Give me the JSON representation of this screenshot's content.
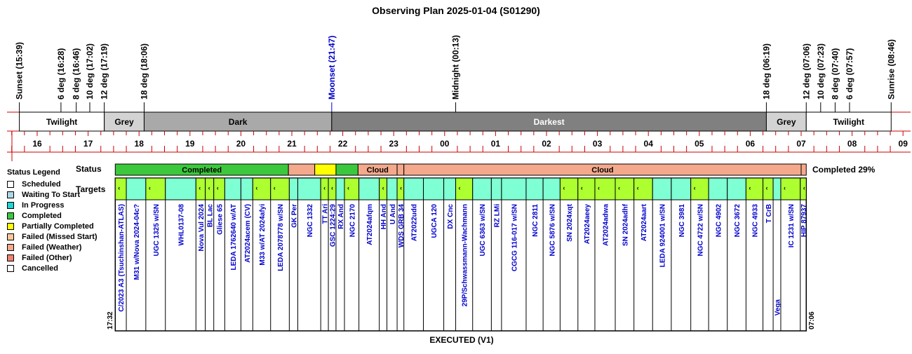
{
  "title": "Observing Plan 2025-01-04 (S01290)",
  "footer": "EXECUTED (V1)",
  "completion": "Completed 29%",
  "status_label": "Status",
  "targets_label": "Targets",
  "start_time_label": "17:32",
  "end_time_label": "07:06",
  "legend": {
    "title": "Status Legend",
    "items": [
      {
        "label": "Scheduled",
        "color": "#ffffff"
      },
      {
        "label": "Waiting To Start",
        "color": "#add8e6"
      },
      {
        "label": "In Progress",
        "color": "#22d3d3"
      },
      {
        "label": "Completed",
        "color": "#3cc83c"
      },
      {
        "label": "Partially Completed",
        "color": "#ffff00"
      },
      {
        "label": "Failed (Missed Start)",
        "color": "#f8c89a"
      },
      {
        "label": "Failed (Weather)",
        "color": "#f4a98c"
      },
      {
        "label": "Failed (Other)",
        "color": "#f08070"
      },
      {
        "label": "Cancelled",
        "color": "#ffffff"
      }
    ]
  },
  "colors": {
    "twilight": "#ffffff",
    "grey": "#d3d3d3",
    "dark": "#a9a9a9",
    "darkest": "#808080",
    "red_line": "#cc0000",
    "moon": "#0000cc",
    "target_text": "#0000cc",
    "target_a": "#7fffd4",
    "target_b": "#adff2f",
    "target_c": "#7cfc00"
  },
  "chart_data": {
    "type": "timeline",
    "events": [
      {
        "label": "Sunset (15:39)",
        "time": 15.65
      },
      {
        "label": "6 deg (16:28)",
        "time": 16.467
      },
      {
        "label": "8 deg (16:46)",
        "time": 16.767
      },
      {
        "label": "10 deg (17:02)",
        "time": 17.033
      },
      {
        "label": "12 deg (17:19)",
        "time": 17.317
      },
      {
        "label": "18 deg (18:06)",
        "time": 18.1
      },
      {
        "label": "Moonset (21:47)",
        "time": 21.783,
        "moon": true
      },
      {
        "label": "Midnight (00:13)",
        "time": 24.217
      },
      {
        "label": "18 deg (06:19)",
        "time": 30.317
      },
      {
        "label": "12 deg (07:06)",
        "time": 31.1
      },
      {
        "label": "10 deg (07:23)",
        "time": 31.383
      },
      {
        "label": "8 deg (07:40)",
        "time": 31.667
      },
      {
        "label": "6 deg (07:57)",
        "time": 31.95
      },
      {
        "label": "Sunrise (08:46)",
        "time": 32.767
      }
    ],
    "bands": [
      {
        "label": "Twilight",
        "start": 15.65,
        "end": 17.317,
        "kind": "twilight"
      },
      {
        "label": "Grey",
        "start": 17.317,
        "end": 18.1,
        "kind": "grey"
      },
      {
        "label": "Dark",
        "start": 18.1,
        "end": 21.783,
        "kind": "dark"
      },
      {
        "label": "Darkest",
        "start": 21.783,
        "end": 30.317,
        "kind": "darkest"
      },
      {
        "label": "Grey",
        "start": 30.317,
        "end": 31.1,
        "kind": "grey"
      },
      {
        "label": "Twilight",
        "start": 31.1,
        "end": 32.767,
        "kind": "twilight"
      }
    ],
    "hour_ticks": [
      "16",
      "17",
      "18",
      "19",
      "20",
      "21",
      "22",
      "23",
      "00",
      "01",
      "02",
      "03",
      "04",
      "05",
      "06",
      "07",
      "08",
      "09"
    ],
    "status_blocks": [
      {
        "label": "Completed",
        "start": 17.533,
        "end": 20.933,
        "color": "#3cc83c"
      },
      {
        "label": "",
        "start": 20.933,
        "end": 21.45,
        "color": "#f4a98c"
      },
      {
        "label": "",
        "start": 21.45,
        "end": 21.867,
        "color": "#ffff00"
      },
      {
        "label": "",
        "start": 21.867,
        "end": 22.3,
        "color": "#3cc83c"
      },
      {
        "label": "Cloud",
        "start": 22.3,
        "end": 23.067,
        "color": "#f4a98c"
      },
      {
        "label": "",
        "start": 23.067,
        "end": 23.2,
        "color": "#f4a98c"
      },
      {
        "label": "Cloud",
        "start": 23.2,
        "end": 31.0,
        "color": "#f4a98c"
      },
      {
        "label": "",
        "start": 31.0,
        "end": 31.1,
        "color": "#f4a98c"
      }
    ],
    "targets": [
      {
        "name": "C/2023 A3 (Tsuchinshan-ATLAS)",
        "start": 17.533,
        "end": 17.75,
        "marker": true,
        "shade": "b"
      },
      {
        "name": "M31 w/Nova 2024-04c?",
        "start": 17.75,
        "end": 18.133,
        "marker": false,
        "shade": "a"
      },
      {
        "name": "UGC 1325 w/SN",
        "start": 18.133,
        "end": 18.517,
        "marker": true,
        "shade": "b"
      },
      {
        "name": "WHL0137-08",
        "start": 18.517,
        "end": 19.117,
        "marker": false,
        "shade": "a"
      },
      {
        "name": "Nova Vul 2024",
        "start": 19.117,
        "end": 19.3,
        "marker": true,
        "shade": "b"
      },
      {
        "name": "BL Lac",
        "start": 19.3,
        "end": 19.467,
        "marker": true,
        "shade": "b"
      },
      {
        "name": "Gliese 65",
        "start": 19.467,
        "end": 19.683,
        "marker": true,
        "shade": "b"
      },
      {
        "name": "LEDA 1762640 w/AT",
        "start": 19.683,
        "end": 20.0,
        "marker": false,
        "shade": "a"
      },
      {
        "name": "AT2024acem (CV)",
        "start": 20.0,
        "end": 20.233,
        "marker": false,
        "shade": "a"
      },
      {
        "name": "M33 w/AT 2024afyi",
        "start": 20.233,
        "end": 20.583,
        "marker": true,
        "shade": "b"
      },
      {
        "name": "LEDA 2078778 w/SN",
        "start": 20.583,
        "end": 20.95,
        "marker": true,
        "shade": "b"
      },
      {
        "name": "GK Per",
        "start": 20.95,
        "end": 21.117,
        "marker": false,
        "shade": "a"
      },
      {
        "name": "NGC 1332",
        "start": 21.117,
        "end": 21.567,
        "marker": false,
        "shade": "a"
      },
      {
        "name": "TT Ari",
        "start": 21.567,
        "end": 21.717,
        "marker": true,
        "shade": "b"
      },
      {
        "name": "GSC 1224:29",
        "start": 21.717,
        "end": 21.867,
        "marker": true,
        "shade": "b"
      },
      {
        "name": "RX And",
        "start": 21.867,
        "end": 22.033,
        "marker": false,
        "shade": "a"
      },
      {
        "name": "NGC 2170",
        "start": 22.033,
        "end": 22.317,
        "marker": true,
        "shade": "b"
      },
      {
        "name": "AT2024afqm",
        "start": 22.317,
        "end": 22.717,
        "marker": false,
        "shade": "a"
      },
      {
        "name": "HH And",
        "start": 22.717,
        "end": 22.867,
        "marker": true,
        "shade": "b"
      },
      {
        "name": "U And",
        "start": 22.867,
        "end": 23.067,
        "marker": false,
        "shade": "a"
      },
      {
        "name": "WDS GRB 34",
        "start": 23.067,
        "end": 23.2,
        "marker": true,
        "shade": "b"
      },
      {
        "name": "AT2022udd",
        "start": 23.2,
        "end": 23.583,
        "marker": false,
        "shade": "a"
      },
      {
        "name": "UGCA 120",
        "start": 23.583,
        "end": 23.983,
        "marker": false,
        "shade": "a"
      },
      {
        "name": "DX Cnc",
        "start": 23.983,
        "end": 24.217,
        "marker": false,
        "shade": "a"
      },
      {
        "name": "29P/Schwassmann-Wachmann",
        "start": 24.217,
        "end": 24.55,
        "marker": true,
        "shade": "b"
      },
      {
        "name": "UGC 6363 w/SN",
        "start": 24.55,
        "end": 24.917,
        "marker": false,
        "shade": "a"
      },
      {
        "name": "RZ LMi",
        "start": 24.917,
        "end": 25.117,
        "marker": false,
        "shade": "a"
      },
      {
        "name": "CGCG 116-017 w/SN",
        "start": 25.117,
        "end": 25.6,
        "marker": false,
        "shade": "a"
      },
      {
        "name": "NGC 2811",
        "start": 25.6,
        "end": 25.933,
        "marker": false,
        "shade": "a"
      },
      {
        "name": "NGC 5876 w/SN",
        "start": 25.933,
        "end": 26.267,
        "marker": false,
        "shade": "a"
      },
      {
        "name": "SN 2024xqt",
        "start": 26.267,
        "end": 26.617,
        "marker": true,
        "shade": "b"
      },
      {
        "name": "AT2024aeey",
        "start": 26.617,
        "end": 26.95,
        "marker": true,
        "shade": "b"
      },
      {
        "name": "AT2024adwa",
        "start": 26.95,
        "end": 27.35,
        "marker": true,
        "shade": "b"
      },
      {
        "name": "SN 2024adhf",
        "start": 27.35,
        "end": 27.717,
        "marker": true,
        "shade": "b"
      },
      {
        "name": "AT2024aart",
        "start": 27.717,
        "end": 28.083,
        "marker": true,
        "shade": "b"
      },
      {
        "name": "LEDA 924001 w/SN",
        "start": 28.083,
        "end": 28.45,
        "marker": false,
        "shade": "a"
      },
      {
        "name": "NGC 3981",
        "start": 28.45,
        "end": 28.833,
        "marker": false,
        "shade": "a"
      },
      {
        "name": "NGC 4722 w/SN",
        "start": 28.833,
        "end": 29.183,
        "marker": true,
        "shade": "b"
      },
      {
        "name": "NGC 4902",
        "start": 29.183,
        "end": 29.55,
        "marker": false,
        "shade": "a"
      },
      {
        "name": "NGC 3672",
        "start": 29.55,
        "end": 29.917,
        "marker": false,
        "shade": "a"
      },
      {
        "name": "NGC 4933",
        "start": 29.917,
        "end": 30.25,
        "marker": true,
        "shade": "b"
      },
      {
        "name": "T CrB",
        "start": 30.25,
        "end": 30.45,
        "marker": true,
        "shade": "b"
      },
      {
        "name": "Vega",
        "start": 30.45,
        "end": 30.6,
        "marker": false,
        "shade": "a"
      },
      {
        "name": "IC 1231 w/SN",
        "start": 30.6,
        "end": 30.983,
        "marker": true,
        "shade": "b"
      },
      {
        "name": "HIP 87937",
        "start": 30.983,
        "end": 31.1,
        "marker": true,
        "shade": "b"
      }
    ]
  }
}
